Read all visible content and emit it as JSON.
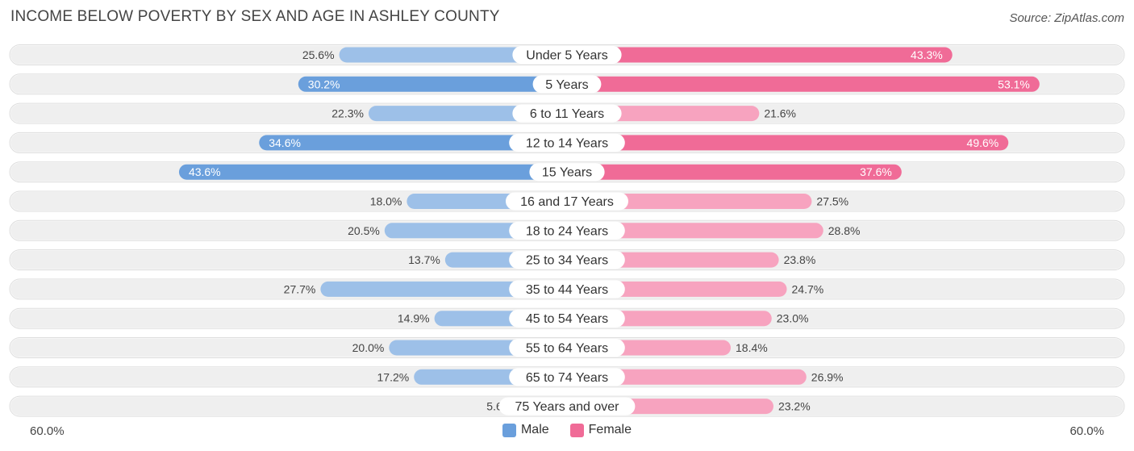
{
  "header": {
    "title": "INCOME BELOW POVERTY BY SEX AND AGE IN ASHLEY COUNTY",
    "source": "Source: ZipAtlas.com"
  },
  "axis": {
    "left_label": "60.0%",
    "right_label": "60.0%"
  },
  "legend": {
    "male": "Male",
    "female": "Female"
  },
  "colors": {
    "male_dark": "#6a9fdc",
    "male_light": "#9dc0e8",
    "female_dark": "#f06b97",
    "female_light": "#f7a3bf",
    "row_bg": "#efefef"
  },
  "chart_data": {
    "type": "bar",
    "orientation": "horizontal-diverging",
    "title": "INCOME BELOW POVERTY BY SEX AND AGE IN ASHLEY COUNTY",
    "categories": [
      "Under 5 Years",
      "5 Years",
      "6 to 11 Years",
      "12 to 14 Years",
      "15 Years",
      "16 and 17 Years",
      "18 to 24 Years",
      "25 to 34 Years",
      "35 to 44 Years",
      "45 to 54 Years",
      "55 to 64 Years",
      "65 to 74 Years",
      "75 Years and over"
    ],
    "series": [
      {
        "name": "Male",
        "values": [
          25.6,
          30.2,
          22.3,
          34.6,
          43.6,
          18.0,
          20.5,
          13.7,
          27.7,
          14.9,
          20.0,
          17.2,
          5.6
        ]
      },
      {
        "name": "Female",
        "values": [
          43.3,
          53.1,
          21.6,
          49.6,
          37.6,
          27.5,
          28.8,
          23.8,
          24.7,
          23.0,
          18.4,
          26.9,
          23.2
        ]
      }
    ],
    "xlim": [
      -60,
      60
    ],
    "legend_position": "bottom-center"
  }
}
